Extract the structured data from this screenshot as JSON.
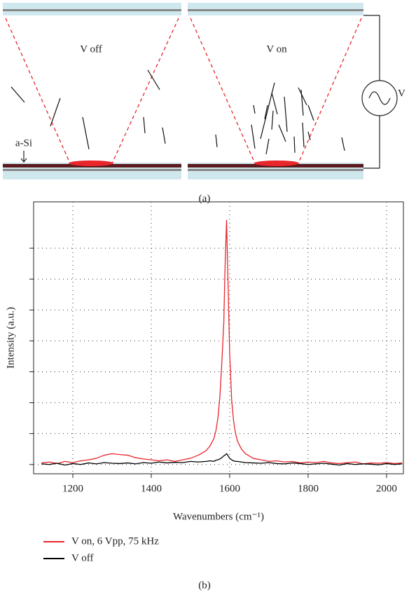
{
  "diagram": {
    "left_label": "V off",
    "right_label": "V on",
    "layer_label": "a-Si",
    "source_label": "V",
    "caption": "(a)"
  },
  "chart_data": {
    "type": "line",
    "caption": "(b)",
    "x_label": "Wavenumbers (cm⁻¹)",
    "y_label": "Intensity (a.u.)",
    "x": [
      1120,
      1140,
      1160,
      1180,
      1200,
      1220,
      1240,
      1260,
      1280,
      1300,
      1320,
      1340,
      1360,
      1380,
      1400,
      1420,
      1440,
      1460,
      1480,
      1500,
      1520,
      1540,
      1550,
      1560,
      1565,
      1570,
      1575,
      1580,
      1585,
      1588,
      1592,
      1596,
      1600,
      1605,
      1610,
      1615,
      1620,
      1630,
      1640,
      1660,
      1680,
      1700,
      1720,
      1740,
      1760,
      1780,
      1800,
      1820,
      1840,
      1860,
      1880,
      1900,
      1920,
      1940,
      1960,
      1980,
      2000,
      2020,
      2040
    ],
    "series": [
      {
        "name": "V on, 6 Vpp, 75 kHz",
        "color": "#e8262b",
        "values": [
          0.05,
          0.08,
          0.03,
          0.1,
          0.06,
          0.12,
          0.15,
          0.2,
          0.3,
          0.35,
          0.32,
          0.3,
          0.22,
          0.18,
          0.15,
          0.12,
          0.15,
          0.1,
          0.15,
          0.2,
          0.3,
          0.45,
          0.6,
          0.85,
          1.1,
          1.5,
          2.2,
          3.3,
          4.6,
          6.3,
          7.9,
          5.8,
          3.6,
          2.1,
          1.4,
          1.0,
          0.75,
          0.5,
          0.35,
          0.2,
          0.15,
          0.1,
          0.12,
          0.08,
          0.1,
          0.05,
          0.08,
          0.06,
          0.1,
          0.05,
          0.03,
          0.06,
          0.08,
          0.02,
          0.05,
          0.04,
          0.06,
          0.03,
          0.05
        ]
      },
      {
        "name": "V off",
        "color": "#000000",
        "values": [
          0.02,
          0.0,
          0.04,
          -0.02,
          0.03,
          0.0,
          0.05,
          0.02,
          0.06,
          0.04,
          0.03,
          0.05,
          0.02,
          0.06,
          0.04,
          0.08,
          0.05,
          0.07,
          0.06,
          0.1,
          0.08,
          0.1,
          0.12,
          0.1,
          0.14,
          0.15,
          0.18,
          0.22,
          0.28,
          0.3,
          0.35,
          0.28,
          0.2,
          0.15,
          0.12,
          0.1,
          0.1,
          0.08,
          0.06,
          0.05,
          0.04,
          0.06,
          0.03,
          0.02,
          0.05,
          0.03,
          0.0,
          0.02,
          0.04,
          0.01,
          -0.02,
          0.03,
          0.0,
          0.02,
          0.01,
          -0.01,
          0.03,
          0.0,
          0.02
        ]
      }
    ],
    "xlim": [
      1100,
      2043
    ],
    "xticks": [
      1200,
      1400,
      1600,
      1800,
      2000
    ],
    "ylim": [
      -0.3,
      8.5
    ],
    "yticks": [
      0,
      1,
      2,
      3,
      4,
      5,
      6,
      7
    ],
    "grid": true
  }
}
